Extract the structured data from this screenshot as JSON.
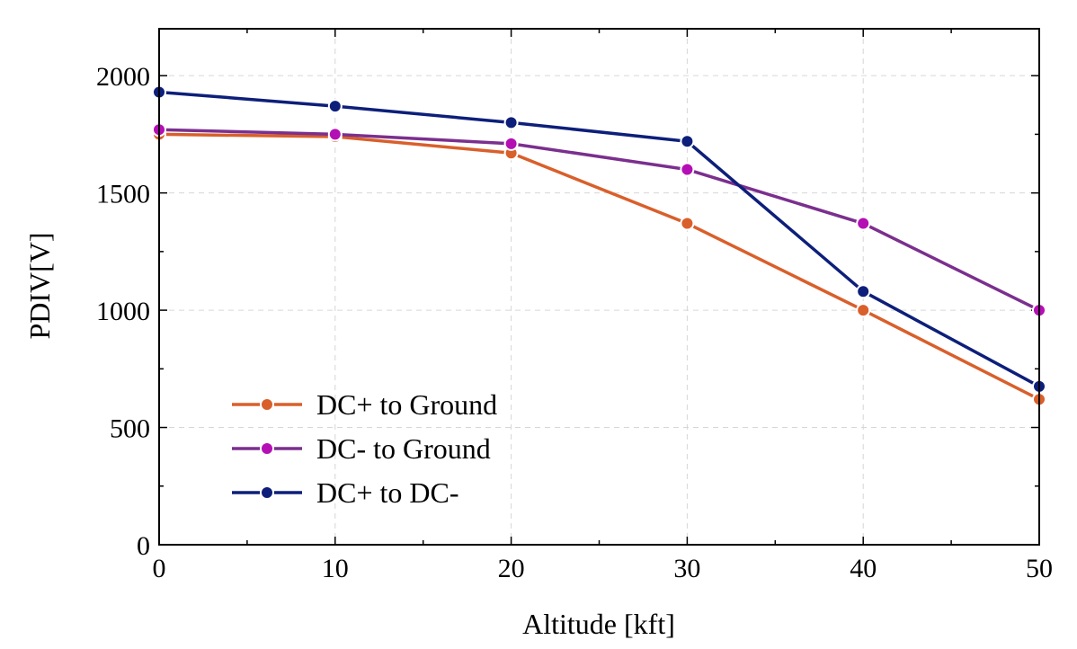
{
  "chart_data": {
    "type": "line",
    "title": "",
    "xlabel": "Altitude [kft]",
    "ylabel": "PDIV[V]",
    "x": [
      0,
      10,
      20,
      30,
      40,
      50
    ],
    "xlim": [
      0,
      50
    ],
    "ylim": [
      0,
      2200
    ],
    "xticks": [
      0,
      10,
      20,
      30,
      40,
      50
    ],
    "yticks": [
      0,
      500,
      1000,
      1500,
      2000
    ],
    "xtick_labels": [
      "0",
      "10",
      "20",
      "30",
      "40",
      "50"
    ],
    "ytick_labels": [
      "0",
      "500",
      "1000",
      "1500",
      "2000"
    ],
    "grid": true,
    "legend_position": "bottom-left",
    "series": [
      {
        "name": "DC+ to Ground",
        "color": "#d95f2b",
        "values": [
          1750,
          1740,
          1670,
          1370,
          1000,
          620
        ]
      },
      {
        "name": "DC- to Ground",
        "color": "#7b2f8e",
        "marker_color": "#b40fb4",
        "values": [
          1770,
          1750,
          1710,
          1600,
          1370,
          1000
        ]
      },
      {
        "name": "DC+ to DC-",
        "color": "#0d1f7a",
        "values": [
          1930,
          1870,
          1800,
          1720,
          1080,
          675
        ]
      }
    ]
  }
}
